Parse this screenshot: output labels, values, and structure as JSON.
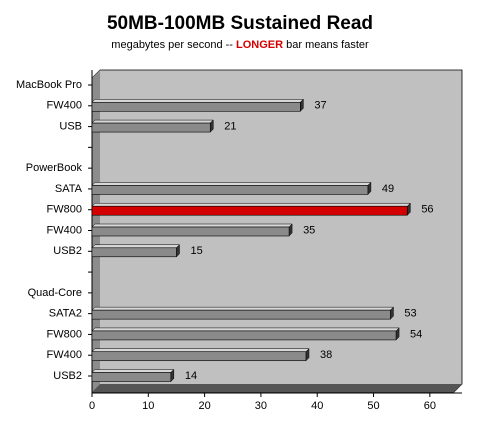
{
  "chart_data": {
    "type": "bar",
    "orientation": "horizontal",
    "title": "50MB-100MB Sustained Read",
    "subtitle": [
      "megabytes per second --",
      "LONGER",
      "bar means faster"
    ],
    "categories": [
      "MacBook Pro",
      "FW400",
      "USB",
      null,
      "PowerBook",
      "SATA",
      "FW800",
      "FW400",
      "USB2",
      null,
      "Quad-Core",
      "SATA2",
      "FW800",
      "FW400",
      "USB2"
    ],
    "values": [
      null,
      37,
      21,
      null,
      null,
      49,
      56,
      35,
      15,
      null,
      null,
      53,
      54,
      38,
      14
    ],
    "colors": [
      null,
      "#8a8a8a",
      "#8a8a8a",
      null,
      null,
      "#8a8a8a",
      "#d40000",
      "#8a8a8a",
      "#8a8a8a",
      null,
      null,
      "#8a8a8a",
      "#8a8a8a",
      "#8a8a8a",
      "#8a8a8a"
    ],
    "subtitle_highlight_color": "#d40000",
    "xlim": [
      0,
      65
    ],
    "xticks": [
      0,
      10,
      20,
      30,
      40,
      50,
      60
    ]
  }
}
